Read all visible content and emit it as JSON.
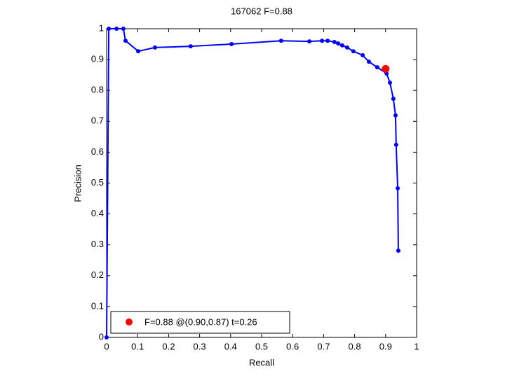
{
  "chart_data": {
    "type": "line",
    "title": "167062 F=0.88",
    "xlabel": "Recall",
    "ylabel": "Precision",
    "xlim": [
      0,
      1
    ],
    "ylim": [
      0,
      1
    ],
    "xticks": [
      0,
      0.1,
      0.2,
      0.3,
      0.4,
      0.5,
      0.6,
      0.7,
      0.8,
      0.9,
      1
    ],
    "yticks": [
      0,
      0.1,
      0.2,
      0.3,
      0.4,
      0.5,
      0.6,
      0.7,
      0.8,
      0.9,
      1
    ],
    "grid": false,
    "legend": "lower left",
    "series": [
      {
        "type": "line",
        "color": "#0000ff",
        "x": [
          0,
          0.007,
          0.032,
          0.054,
          0.061,
          0.102,
          0.156,
          0.271,
          0.403,
          0.563,
          0.654,
          0.695,
          0.713,
          0.735,
          0.747,
          0.76,
          0.776,
          0.796,
          0.826,
          0.846,
          0.873,
          0.903,
          0.914,
          0.925,
          0.932,
          0.934,
          0.939,
          0.941
        ],
        "values": [
          0,
          1,
          1,
          1,
          0.961,
          0.927,
          0.939,
          0.943,
          0.95,
          0.961,
          0.959,
          0.961,
          0.961,
          0.957,
          0.952,
          0.946,
          0.939,
          0.927,
          0.914,
          0.893,
          0.875,
          0.855,
          0.825,
          0.773,
          0.719,
          0.624,
          0.483,
          0.281
        ]
      },
      {
        "type": "scatter",
        "name": "F=0.88 @(0.90,0.87) t=0.26",
        "color": "#ff0000",
        "x": [
          0.9
        ],
        "values": [
          0.87
        ]
      }
    ]
  }
}
